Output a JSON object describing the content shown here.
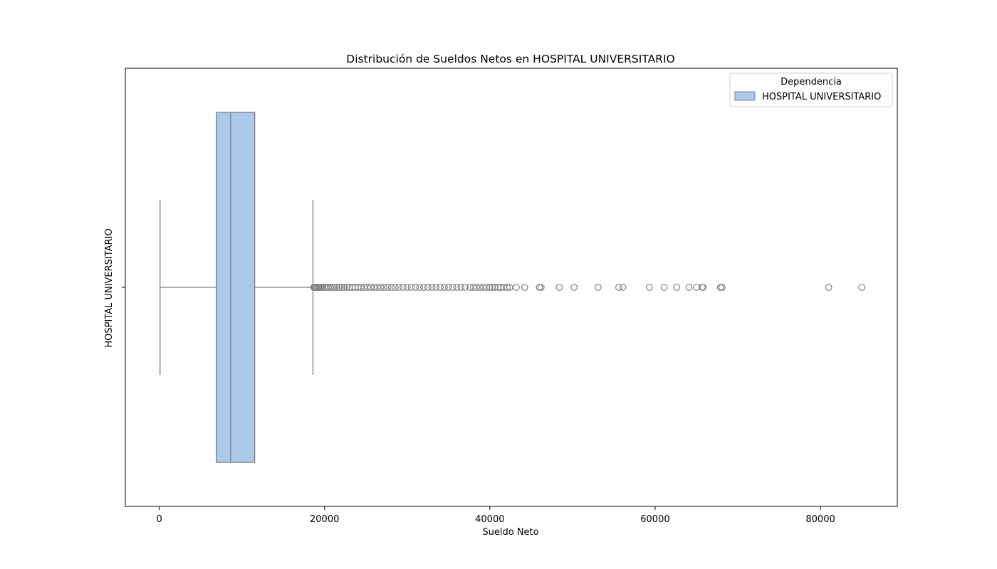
{
  "chart_data": {
    "type": "box",
    "orientation": "horizontal",
    "title": "Distribución de Sueldos Netos en HOSPITAL UNIVERSITARIO",
    "xlabel": "Sueldo Neto",
    "ylabel": "HOSPITAL UNIVERSITARIO",
    "xlim": [
      -4100,
      89300
    ],
    "xticks": [
      0,
      20000,
      40000,
      60000,
      80000
    ],
    "xtick_labels": [
      "0",
      "20000",
      "40000",
      "60000",
      "80000"
    ],
    "categories": [
      "HOSPITAL UNIVERSITARIO"
    ],
    "legend": {
      "title": "Dependencia",
      "entries": [
        "HOSPITAL UNIVERSITARIO"
      ],
      "placement": "upper-right"
    },
    "box_color": "#abc9ea",
    "line_color": "#7f7f7f",
    "grid": false,
    "series": [
      {
        "name": "HOSPITAL UNIVERSITARIO",
        "whisker_low": 100,
        "q1": 6900,
        "median": 8650,
        "q3": 11550,
        "whisker_high": 18600,
        "outliers": [
          18700,
          18800,
          18900,
          19000,
          19150,
          19300,
          19450,
          19600,
          19800,
          20000,
          20200,
          20450,
          20700,
          20950,
          21200,
          21500,
          21800,
          22100,
          22400,
          22700,
          23000,
          23350,
          23700,
          24050,
          24400,
          24800,
          25200,
          25600,
          26000,
          26400,
          26800,
          27200,
          27650,
          28100,
          28550,
          29000,
          29500,
          30000,
          30500,
          31000,
          31500,
          32000,
          32500,
          33000,
          33500,
          34000,
          34500,
          35000,
          35500,
          36000,
          36500,
          37000,
          37600,
          38000,
          38400,
          38800,
          39200,
          39600,
          40000,
          40300,
          40600,
          41000,
          41300,
          41700,
          42100,
          42400,
          43200,
          44200,
          46000,
          46200,
          48400,
          50200,
          53100,
          55600,
          56100,
          59300,
          61100,
          62600,
          64100,
          65000,
          65700,
          65800,
          67900,
          68100,
          81000,
          85000
        ]
      }
    ]
  }
}
